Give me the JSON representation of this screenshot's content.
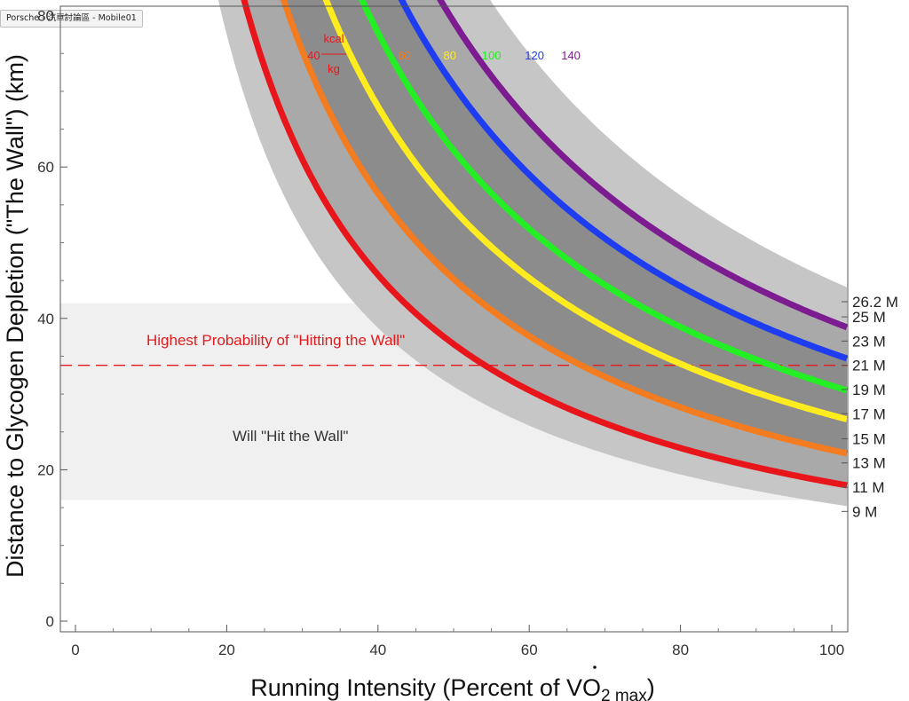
{
  "window": {
    "tab_title": "Porsche - 汽車討論區 - Mobile01"
  },
  "chart_data": {
    "type": "line",
    "xlabel": "Running Intensity (Percent of V̇O₂max)",
    "xlabel_parts": {
      "main": "Running Intensity (Percent of ",
      "v": "V",
      "o": "O",
      "sub": "2 max",
      "close": ")"
    },
    "ylabel": "Distance to Glycogen Depletion (\"The Wall\") (km)",
    "xlim": [
      -2,
      102
    ],
    "ylim": [
      -1.5,
      81
    ],
    "x_ticks": [
      "0",
      "20",
      "40",
      "60",
      "80",
      "100"
    ],
    "y_ticks": [
      "0",
      "20",
      "40",
      "60",
      "80"
    ],
    "grid": false,
    "unit_label": {
      "top": "kcal",
      "bottom": "kg"
    },
    "series": [
      {
        "name": "40",
        "color": "#e8161b",
        "k": 1830,
        "label_x": 31.5
      },
      {
        "name": "60",
        "color": "#f47c20",
        "k": 2260,
        "label_x": 43.5
      },
      {
        "name": "80",
        "color": "#ffec1f",
        "k": 2720,
        "label_x": 49.5
      },
      {
        "name": "100",
        "color": "#24ee24",
        "k": 3110,
        "label_x": 55
      },
      {
        "name": "120",
        "color": "#1e3cf0",
        "k": 3540,
        "label_x": 60.7
      },
      {
        "name": "140",
        "color": "#7d1b91",
        "k": 3960,
        "label_x": 65.5
      }
    ],
    "bands": [
      {
        "k_low": 1550,
        "k_high": 4500,
        "color": "#c6c6c6"
      },
      {
        "k_low": 1830,
        "k_high": 3960,
        "color": "#a9a9a9"
      },
      {
        "k_low": 2260,
        "k_high": 3540,
        "color": "#8c8c8c"
      }
    ],
    "wall_region": {
      "y_low": 16,
      "y_high": 42,
      "color": "#f0f0f0"
    },
    "wall_line": {
      "y": 33.8,
      "color": "#e41a1c"
    },
    "annotations": {
      "highest": "Highest Probability of \"Hitting the Wall\"",
      "will_hit": "Will \"Hit the Wall\""
    },
    "right_labels": [
      {
        "text": "26.2 M",
        "y": 42.2
      },
      {
        "text": "25 M",
        "y": 40.2
      },
      {
        "text": "23 M",
        "y": 37.0
      },
      {
        "text": "21 M",
        "y": 33.8
      },
      {
        "text": "19 M",
        "y": 30.6
      },
      {
        "text": "17 M",
        "y": 27.4
      },
      {
        "text": "15 M",
        "y": 24.1
      },
      {
        "text": "13 M",
        "y": 20.9
      },
      {
        "text": "11 M",
        "y": 17.7
      },
      {
        "text": "9 M",
        "y": 14.5
      }
    ]
  }
}
